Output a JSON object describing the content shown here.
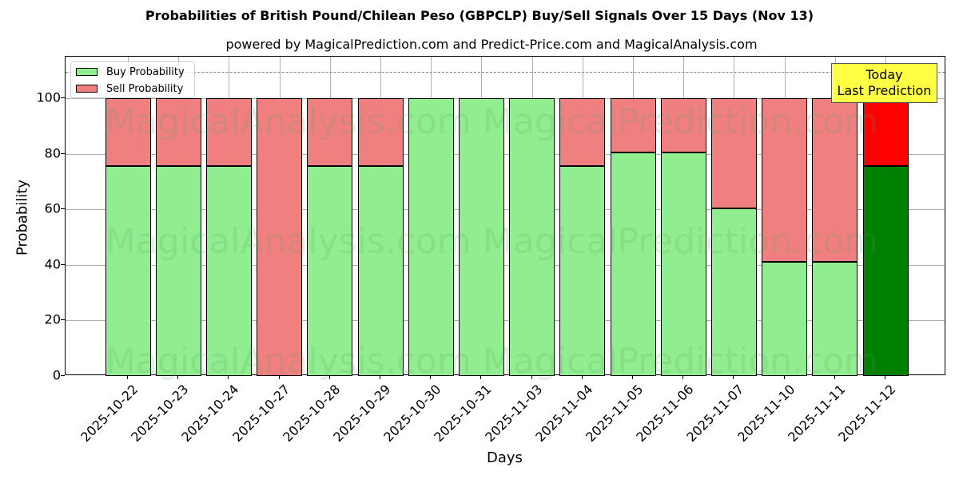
{
  "title": "Probabilities of British Pound/Chilean Peso (GBPCLP) Buy/Sell Signals Over 15 Days (Nov 13)",
  "subtitle": "powered by MagicalPrediction.com and Predict-Price.com and MagicalAnalysis.com",
  "xlabel": "Days",
  "ylabel": "Probability",
  "legend": {
    "buy": "Buy Probability",
    "sell": "Sell Probability"
  },
  "annotation": {
    "line1": "Today",
    "line2": "Last Prediction"
  },
  "watermarks": [
    "MagicalAnalysis.com",
    "MagicalPrediction.com"
  ],
  "colors": {
    "buy": "#90ee90",
    "sell": "#f08080",
    "today_buy": "#008000",
    "today_sell": "#ff0000",
    "annotation_bg": "#ffff44"
  },
  "yticks": [
    "0",
    "20",
    "40",
    "60",
    "80",
    "100"
  ],
  "chart_data": {
    "type": "bar",
    "stacked": true,
    "title": "Probabilities of British Pound/Chilean Peso (GBPCLP) Buy/Sell Signals Over 15 Days (Nov 13)",
    "subtitle": "powered by MagicalPrediction.com and Predict-Price.com and MagicalAnalysis.com",
    "xlabel": "Days",
    "ylabel": "Probability",
    "ylim": [
      0,
      115
    ],
    "grid": true,
    "legend_position": "upper left",
    "reference_line": 110,
    "categories": [
      "2025-10-22",
      "2025-10-23",
      "2025-10-24",
      "2025-10-27",
      "2025-10-28",
      "2025-10-29",
      "2025-10-30",
      "2025-10-31",
      "2025-11-03",
      "2025-11-04",
      "2025-11-05",
      "2025-11-06",
      "2025-11-07",
      "2025-11-10",
      "2025-11-11",
      "2025-11-12"
    ],
    "series": [
      {
        "name": "Buy Probability",
        "values": [
          75.7,
          75.7,
          75.7,
          0,
          75.7,
          75.7,
          100,
          100,
          100,
          75.7,
          80.6,
          80.6,
          60.4,
          41.0,
          41.0,
          75.7
        ]
      },
      {
        "name": "Sell Probability",
        "values": [
          24.3,
          24.3,
          24.3,
          100,
          24.3,
          24.3,
          0,
          0,
          0,
          24.3,
          19.4,
          19.4,
          39.6,
          59.0,
          59.0,
          24.3
        ]
      }
    ],
    "annotations": [
      {
        "text": "Today\nLast Prediction",
        "x": "2025-11-12"
      }
    ]
  }
}
